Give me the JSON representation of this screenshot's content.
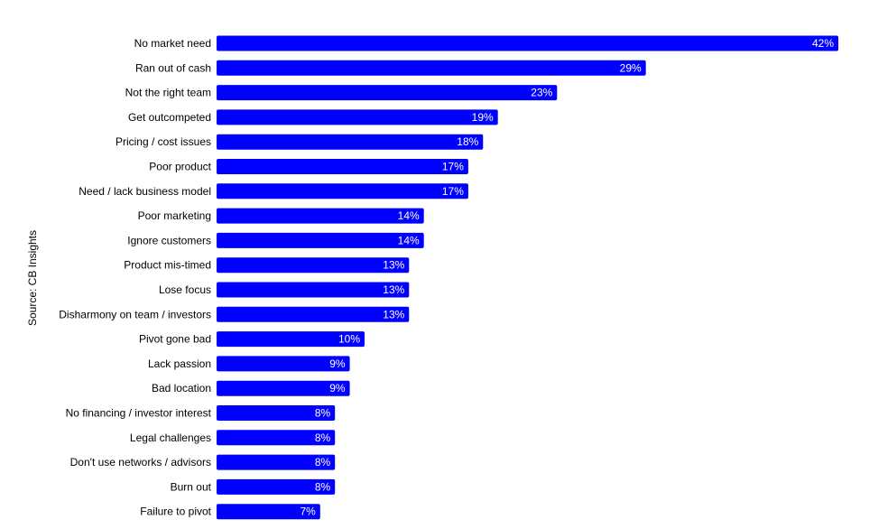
{
  "chart_data": {
    "type": "bar",
    "orientation": "horizontal",
    "categories": [
      "No market need",
      "Ran out of cash",
      "Not the right team",
      "Get outcompeted",
      "Pricing / cost issues",
      "Poor product",
      "Need / lack business model",
      "Poor marketing",
      "Ignore customers",
      "Product mis-timed",
      "Lose focus",
      "Disharmony on team / investors",
      "Pivot gone bad",
      "Lack passion",
      "Bad location",
      "No financing / investor interest",
      "Legal challenges",
      "Don't use networks / advisors",
      "Burn out",
      "Failure to pivot"
    ],
    "values": [
      42,
      29,
      23,
      19,
      18,
      17,
      17,
      14,
      14,
      13,
      13,
      13,
      10,
      9,
      9,
      8,
      8,
      8,
      8,
      7
    ],
    "value_labels": [
      "42%",
      "29%",
      "23%",
      "19%",
      "18%",
      "17%",
      "17%",
      "14%",
      "14%",
      "13%",
      "13%",
      "13%",
      "10%",
      "9%",
      "9%",
      "8%",
      "8%",
      "8%",
      "8%",
      "7%"
    ],
    "xlim": [
      0,
      42
    ],
    "title": "",
    "xlabel": "",
    "ylabel": "Source: CB Insights",
    "grid": false,
    "legend": "none",
    "bar_color": "#0000ff",
    "label_color": "#ffffff"
  }
}
